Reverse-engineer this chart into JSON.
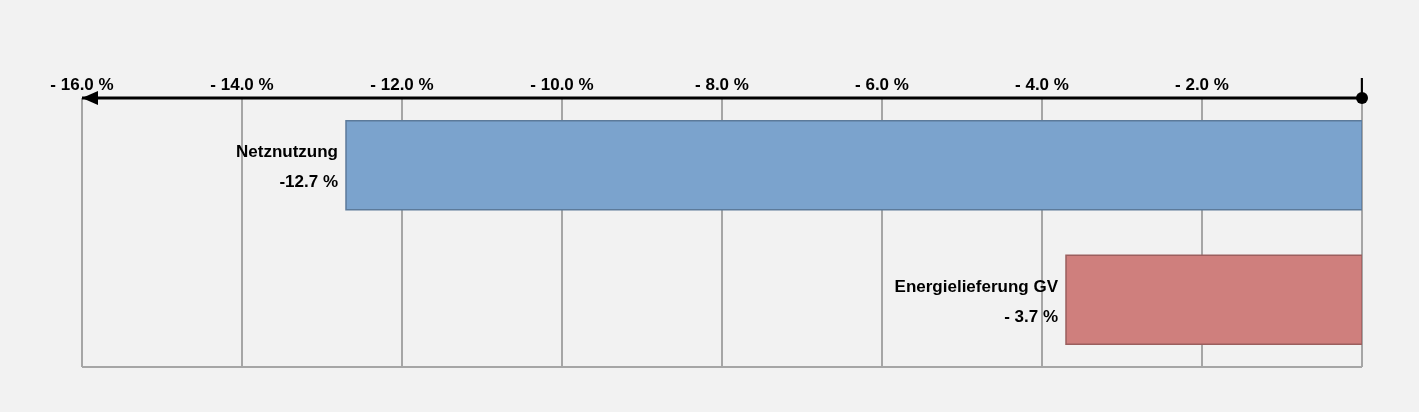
{
  "chart_data": {
    "type": "bar",
    "orientation": "horizontal",
    "categories": [
      "Netznutzung",
      "Energielieferung GV"
    ],
    "values": [
      -12.7,
      -3.7
    ],
    "colors": [
      "#7ba3cd",
      "#cf7f7d"
    ],
    "value_labels": [
      "-12.7 %",
      "- 3.7 %"
    ],
    "xlim": [
      -16,
      0
    ],
    "xticks": [
      {
        "value": -16,
        "label": "- 16.0 %"
      },
      {
        "value": -14,
        "label": "- 14.0 %"
      },
      {
        "value": -12,
        "label": "- 12.0 %"
      },
      {
        "value": -10,
        "label": "- 10.0 %"
      },
      {
        "value": -8,
        "label": "- 8.0 %"
      },
      {
        "value": -6,
        "label": "- 6.0 %"
      },
      {
        "value": -4,
        "label": "- 4.0 %"
      },
      {
        "value": -2,
        "label": "- 2.0 %"
      },
      {
        "value": 0,
        "label": "|"
      }
    ],
    "grid": true,
    "tick_labels": "x"
  }
}
